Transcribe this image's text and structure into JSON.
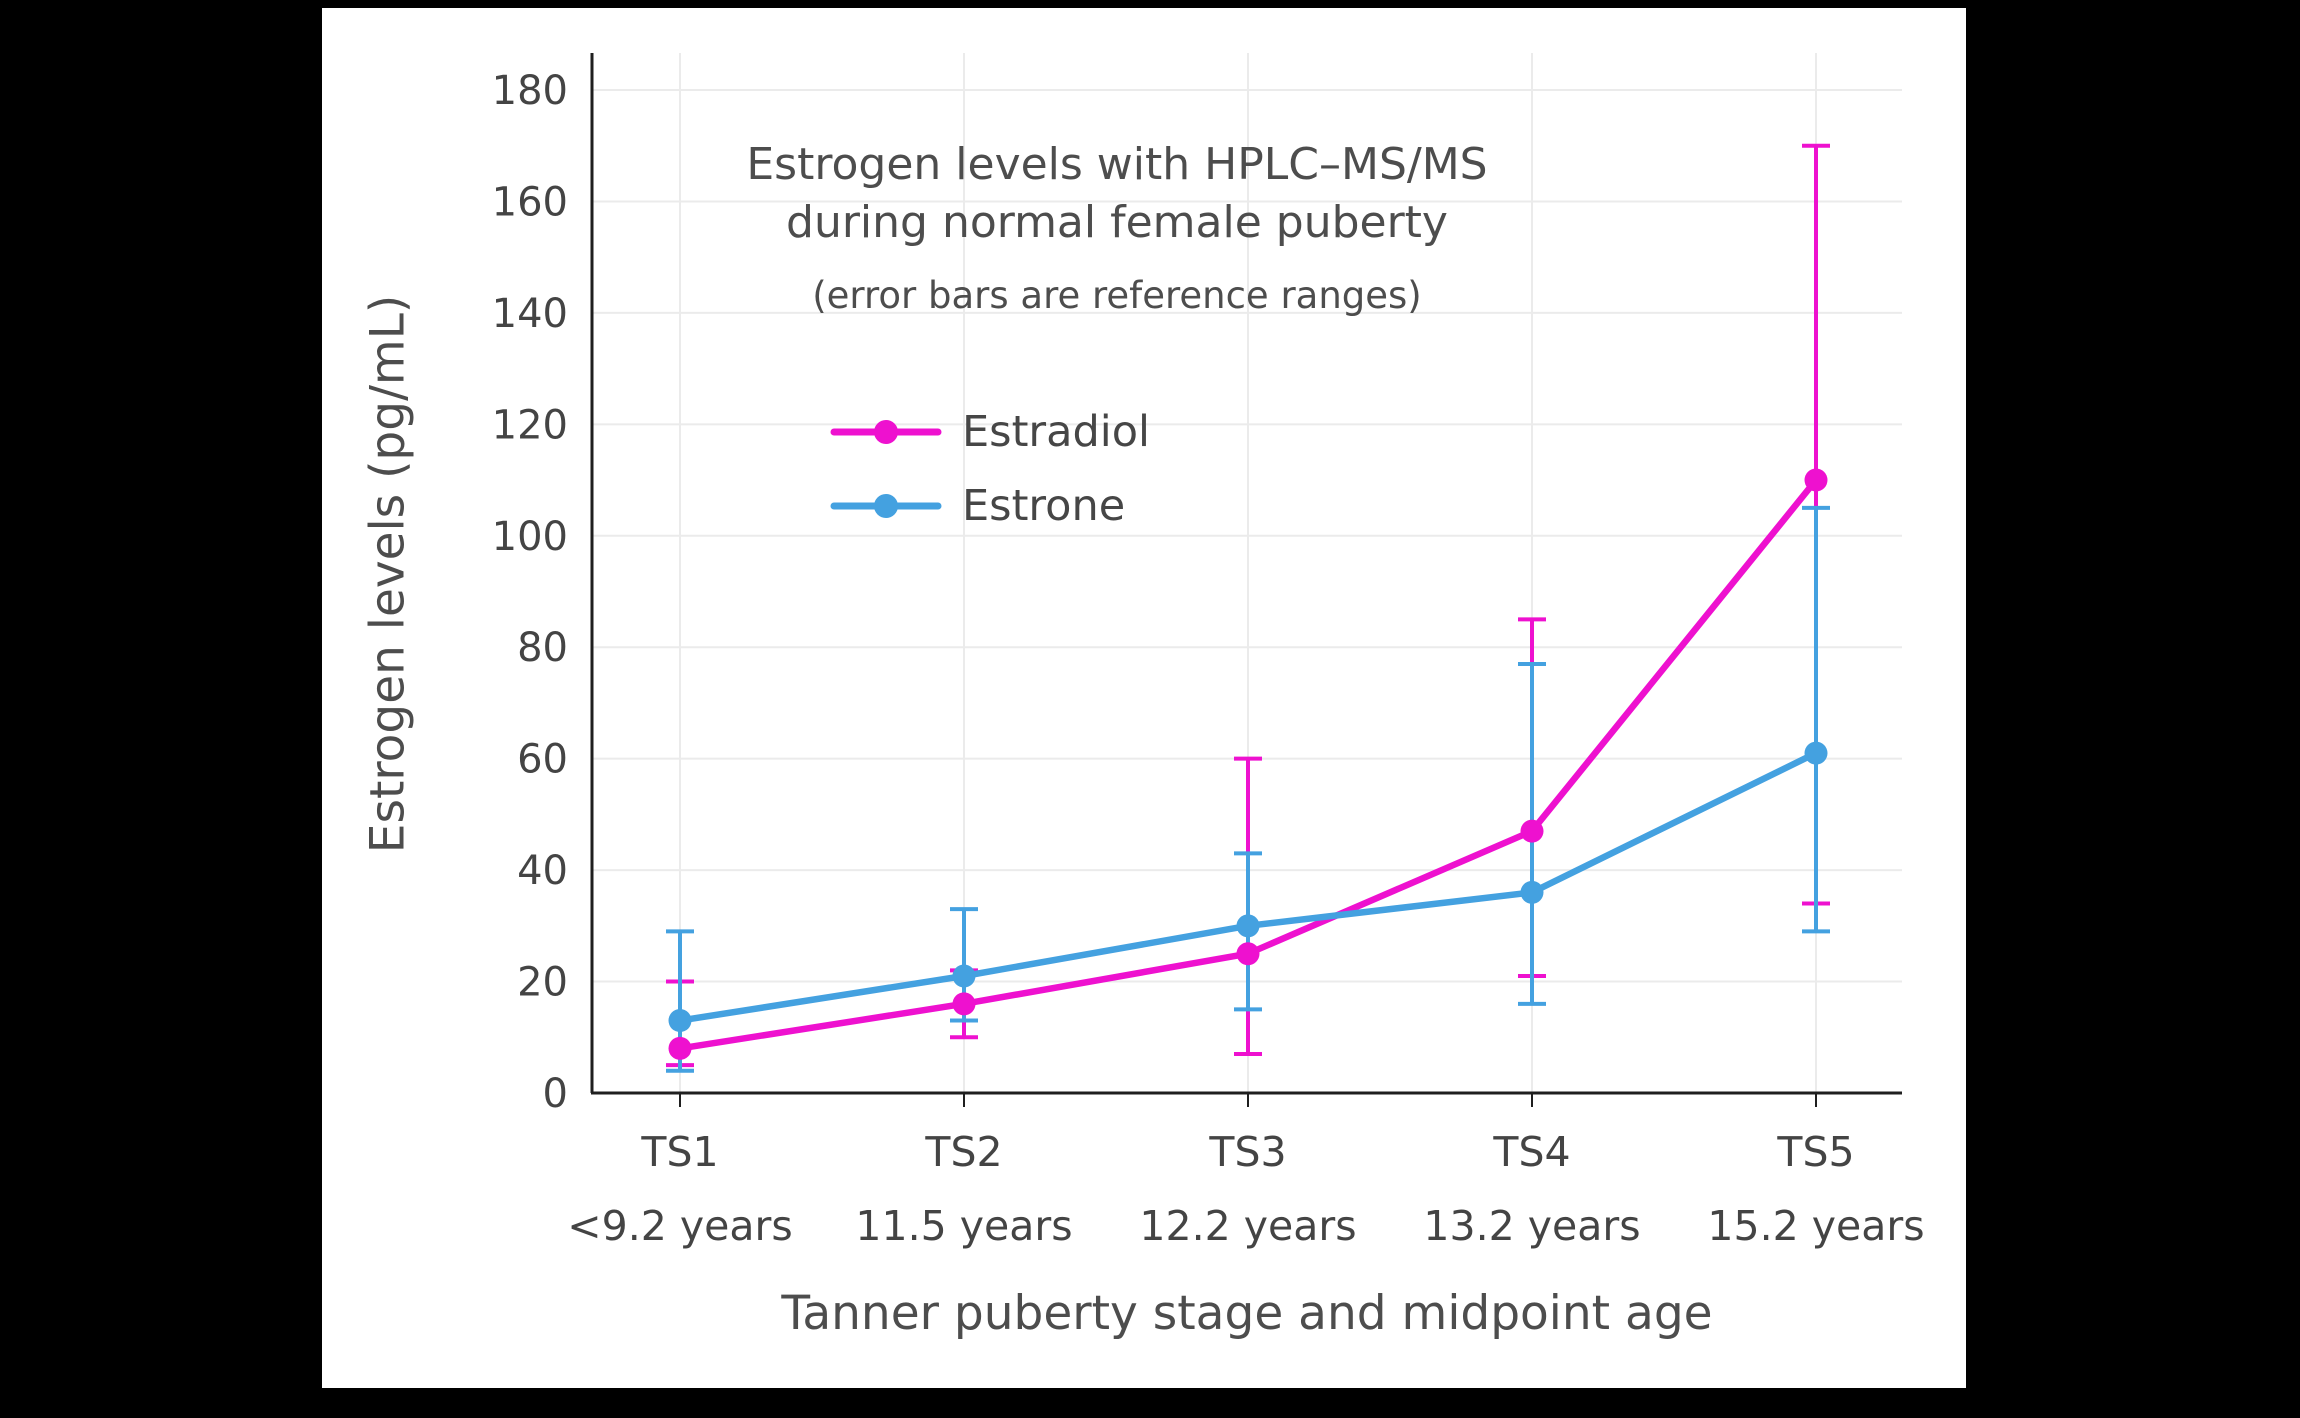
{
  "page": {
    "background_color": "#000000",
    "panel_color": "#ffffff"
  },
  "chart_data": {
    "type": "line",
    "title_line1": "Estrogen levels with HPLC–MS/MS",
    "title_line2": "during normal female puberty",
    "subtitle": "(error bars are reference ranges)",
    "xlabel": "Tanner puberty stage and midpoint age",
    "ylabel": "Estrogen levels (pg/mL)",
    "ylim": [
      0,
      180
    ],
    "ytick_step": 20,
    "ytick_labels": [
      "0",
      "20",
      "40",
      "60",
      "80",
      "100",
      "120",
      "140",
      "160",
      "180"
    ],
    "grid": true,
    "legend_position": "upper-left-inside",
    "categories": [
      "TS1",
      "TS2",
      "TS3",
      "TS4",
      "TS5"
    ],
    "category_sublabels": [
      "<9.2 years",
      "11.5 years",
      "12.2 years",
      "13.2 years",
      "15.2 years"
    ],
    "series": [
      {
        "name": "Estradiol",
        "color": "#ee11cf",
        "values": [
          8,
          16,
          25,
          47,
          110
        ],
        "err_low": [
          5,
          10,
          7,
          21,
          34
        ],
        "err_high": [
          20,
          22,
          60,
          85,
          170
        ]
      },
      {
        "name": "Estrone",
        "color": "#44a1e0",
        "values": [
          13,
          21,
          30,
          36,
          61
        ],
        "err_low": [
          4,
          13,
          15,
          16,
          29
        ],
        "err_high": [
          29,
          33,
          43,
          77,
          105
        ]
      }
    ],
    "style": {
      "grid_color": "#ebebeb",
      "axis_color": "#1f1f1f",
      "tick_text_color": "#444444"
    }
  }
}
